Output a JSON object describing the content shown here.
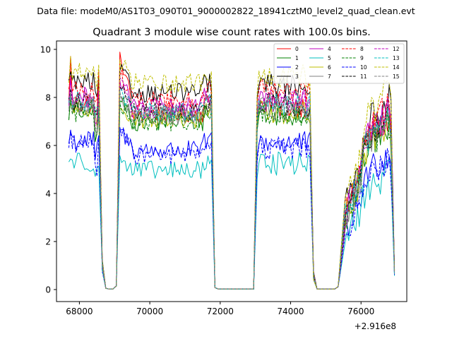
{
  "header": {
    "data_file": "Data file: modeM0/AS1T03_090T01_9000002822_18941cztM0_level2_quad_clean.evt"
  },
  "chart_data": {
    "type": "line",
    "title": "Quadrant 3 module wise count rates with 100.0s bins.",
    "xlabel": "",
    "ylabel": "",
    "x_offset_label": "+2.916e8",
    "xlim": [
      67350,
      77300
    ],
    "ylim": [
      -0.5,
      10.35
    ],
    "x_ticks": [
      68000,
      70000,
      72000,
      74000,
      76000
    ],
    "x_tick_labels": [
      "68000",
      "70000",
      "72000",
      "74000",
      "76000"
    ],
    "y_ticks": [
      0,
      2,
      4,
      6,
      8,
      10
    ],
    "y_tick_labels": [
      "0",
      "2",
      "4",
      "6",
      "8",
      "10"
    ],
    "grid": false,
    "legend_position": "top-right",
    "series": [
      {
        "name": "0",
        "color": "#ff0000",
        "dash": "solid",
        "level": 7.35,
        "peak": 9.8
      },
      {
        "name": "1",
        "color": "#008000",
        "dash": "solid",
        "level": 7.0,
        "peak": 7.9
      },
      {
        "name": "2",
        "color": "#0000ff",
        "dash": "solid",
        "level": 5.8,
        "peak": 6.6
      },
      {
        "name": "3",
        "color": "#000000",
        "dash": "solid",
        "level": 8.2,
        "peak": 9.2
      },
      {
        "name": "4",
        "color": "#bf00bf",
        "dash": "solid",
        "level": 7.6,
        "peak": 8.7
      },
      {
        "name": "5",
        "color": "#00bfbf",
        "dash": "solid",
        "level": 4.95,
        "peak": 5.5
      },
      {
        "name": "6",
        "color": "#bfbf00",
        "dash": "solid",
        "level": 7.1,
        "peak": 7.6
      },
      {
        "name": "7",
        "color": "#808080",
        "dash": "solid",
        "level": 7.2,
        "peak": 8.0
      },
      {
        "name": "8",
        "color": "#ff0000",
        "dash": "dashed",
        "level": 7.9,
        "peak": 9.0
      },
      {
        "name": "9",
        "color": "#008000",
        "dash": "dashed",
        "level": 7.0,
        "peak": 7.8
      },
      {
        "name": "10",
        "color": "#0000ff",
        "dash": "dashed",
        "level": 5.6,
        "peak": 6.7
      },
      {
        "name": "11",
        "color": "#000000",
        "dash": "dashed",
        "level": 7.4,
        "peak": 8.5
      },
      {
        "name": "12",
        "color": "#bf00bf",
        "dash": "dashed",
        "level": 7.5,
        "peak": 8.8
      },
      {
        "name": "13",
        "color": "#00bfbf",
        "dash": "dashed",
        "level": 7.4,
        "peak": 8.2
      },
      {
        "name": "14",
        "color": "#bfbf00",
        "dash": "dashed",
        "level": 8.6,
        "peak": 9.6
      },
      {
        "name": "15",
        "color": "#808080",
        "dash": "dashed",
        "level": 7.3,
        "peak": 8.2
      }
    ],
    "segments": [
      {
        "x_start": 67700,
        "x_end": 68550
      },
      {
        "x_start": 69150,
        "x_end": 71750
      },
      {
        "x_start": 73050,
        "x_end": 74550
      },
      {
        "x_start": 75550,
        "x_end": 76950
      }
    ],
    "gaps": [
      {
        "x_start": 68650,
        "x_end": 69050
      },
      {
        "x_start": 71850,
        "x_end": 72950
      },
      {
        "x_start": 74650,
        "x_end": 75350
      }
    ]
  }
}
